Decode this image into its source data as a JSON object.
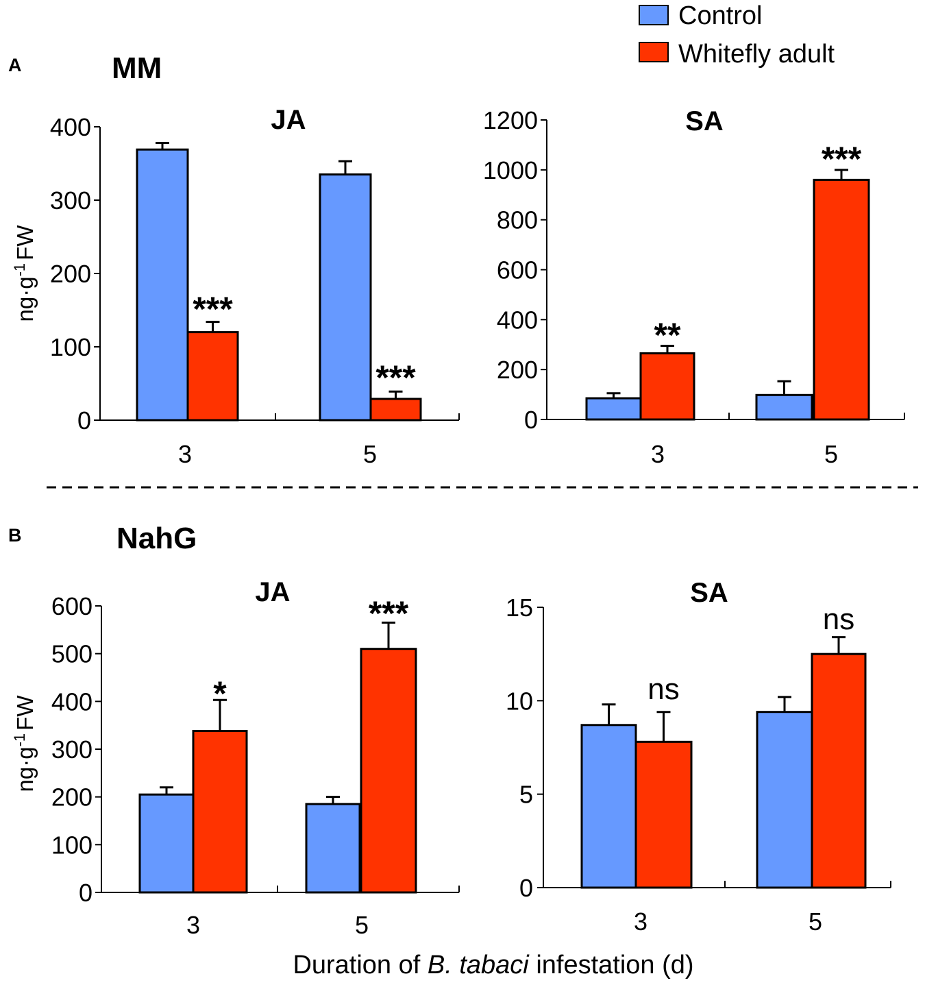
{
  "legend": {
    "control": {
      "label": "Control",
      "color": "#6699ff"
    },
    "whitefly": {
      "label": "Whitefly adult",
      "color": "#ff3300"
    }
  },
  "panel_a": {
    "letter": "A",
    "group": "MM"
  },
  "panel_b": {
    "letter": "B",
    "group": "NahG"
  },
  "y_label": {
    "main": "ng·g",
    "sup": "-1",
    "unit": "FW"
  },
  "x_label": {
    "prefix": "Duration of ",
    "species": "B. tabaci",
    "suffix": " infestation (d)"
  },
  "chart_data": [
    {
      "id": "mm-ja",
      "panel": "A",
      "type": "bar",
      "title": "JA",
      "ylabel": "ng·g-1 FW",
      "ylim": [
        0,
        400
      ],
      "yticks": [
        0,
        100,
        200,
        300,
        400
      ],
      "categories": [
        "3",
        "5"
      ],
      "series": [
        {
          "name": "Control",
          "values": [
            369,
            335
          ],
          "errors": [
            9,
            18
          ]
        },
        {
          "name": "Whitefly adult",
          "values": [
            120,
            29
          ],
          "errors": [
            14,
            10
          ]
        }
      ],
      "significance": [
        "***",
        "***"
      ]
    },
    {
      "id": "mm-sa",
      "panel": "A",
      "type": "bar",
      "title": "SA",
      "ylabel": "",
      "ylim": [
        0,
        1200
      ],
      "yticks": [
        0,
        200,
        400,
        600,
        800,
        1000,
        1200
      ],
      "categories": [
        "3",
        "5"
      ],
      "series": [
        {
          "name": "Control",
          "values": [
            85,
            98
          ],
          "errors": [
            20,
            55
          ]
        },
        {
          "name": "Whitefly adult",
          "values": [
            265,
            960
          ],
          "errors": [
            30,
            40
          ]
        }
      ],
      "significance": [
        "**",
        "***"
      ]
    },
    {
      "id": "nahg-ja",
      "panel": "B",
      "type": "bar",
      "title": "JA",
      "ylabel": "ng·g-1 FW",
      "ylim": [
        0,
        600
      ],
      "yticks": [
        0,
        100,
        200,
        300,
        400,
        500,
        600
      ],
      "categories": [
        "3",
        "5"
      ],
      "series": [
        {
          "name": "Control",
          "values": [
            205,
            185
          ],
          "errors": [
            15,
            15
          ]
        },
        {
          "name": "Whitefly adult",
          "values": [
            338,
            510
          ],
          "errors": [
            65,
            55
          ]
        }
      ],
      "significance": [
        "*",
        "***"
      ]
    },
    {
      "id": "nahg-sa",
      "panel": "B",
      "type": "bar",
      "title": "SA",
      "ylabel": "",
      "ylim": [
        0,
        15
      ],
      "yticks": [
        0,
        5,
        10,
        15
      ],
      "categories": [
        "3",
        "5"
      ],
      "series": [
        {
          "name": "Control",
          "values": [
            8.7,
            9.4
          ],
          "errors": [
            1.1,
            0.8
          ]
        },
        {
          "name": "Whitefly adult",
          "values": [
            7.8,
            12.5
          ],
          "errors": [
            1.6,
            0.9
          ]
        }
      ],
      "significance": [
        "ns",
        "ns"
      ]
    }
  ]
}
